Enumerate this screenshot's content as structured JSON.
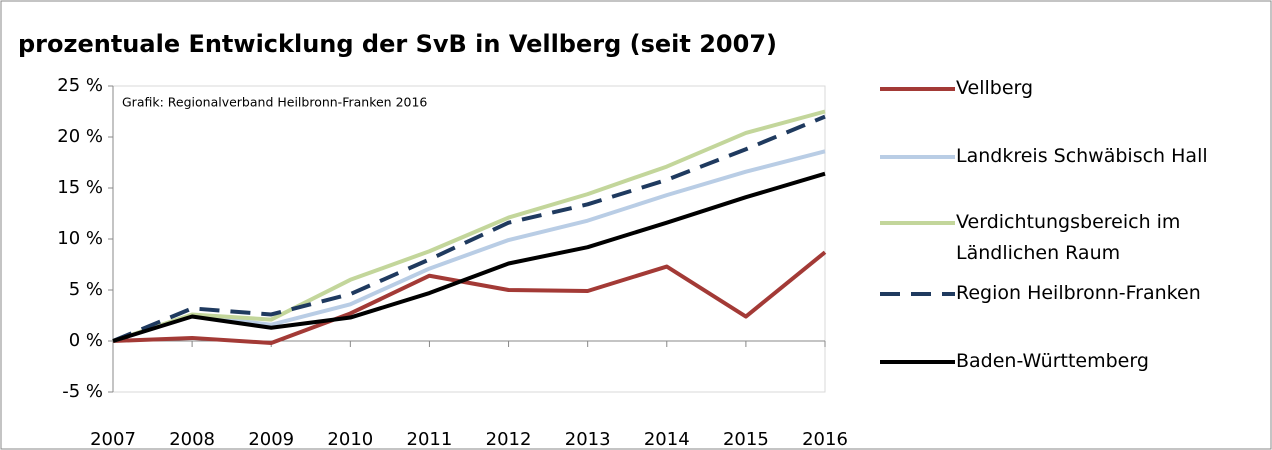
{
  "chart_data": {
    "type": "line",
    "title": "prozentuale Entwicklung der SvB in Vellberg (seit 2007)",
    "annotation": "Grafik: Regionalverband Heilbronn-Franken 2016",
    "categories": [
      "2007",
      "2008",
      "2009",
      "2010",
      "2011",
      "2012",
      "2013",
      "2014",
      "2015",
      "2016"
    ],
    "series": [
      {
        "name": "Vellberg",
        "color": "#a33a36",
        "style": "solid",
        "values": [
          0,
          0.3,
          -0.2,
          2.7,
          6.4,
          5.0,
          4.9,
          7.3,
          2.4,
          8.7
        ]
      },
      {
        "name": "Landkreis Schwäbisch Hall",
        "color": "#b9cde5",
        "style": "solid",
        "values": [
          0,
          2.5,
          1.6,
          3.6,
          7.1,
          9.9,
          11.8,
          14.3,
          16.6,
          18.6
        ]
      },
      {
        "name": "Verdichtungsbereich im Ländlichen Raum",
        "color": "#c3d69b",
        "style": "solid",
        "values": [
          0,
          2.6,
          2.1,
          6.0,
          8.8,
          12.1,
          14.4,
          17.1,
          20.4,
          22.5
        ]
      },
      {
        "name": "Region Heilbronn-Franken",
        "color": "#1f3a5f",
        "style": "dashed",
        "values": [
          0,
          3.2,
          2.6,
          4.6,
          8.0,
          11.6,
          13.4,
          15.8,
          18.8,
          22.0
        ]
      },
      {
        "name": "Baden-Württemberg",
        "color": "#000000",
        "style": "solid",
        "values": [
          0,
          2.4,
          1.3,
          2.3,
          4.7,
          7.6,
          9.2,
          11.6,
          14.1,
          16.4
        ]
      }
    ],
    "ylim": [
      -5,
      25
    ],
    "yticks": [
      {
        "value": -5,
        "label": "-5 %"
      },
      {
        "value": 0,
        "label": "0 %"
      },
      {
        "value": 5,
        "label": "5 %"
      },
      {
        "value": 10,
        "label": "10 %"
      },
      {
        "value": 15,
        "label": "15 %"
      },
      {
        "value": 20,
        "label": "20 %"
      },
      {
        "value": 25,
        "label": "25 %"
      }
    ],
    "grid": false,
    "legend": "right"
  }
}
